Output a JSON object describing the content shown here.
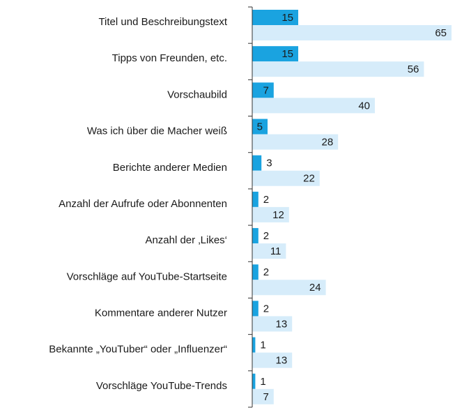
{
  "chart_data": {
    "type": "bar",
    "orientation": "horizontal",
    "categories": [
      "Titel und Beschreibungstext",
      "Tipps von Freunden, etc.",
      "Vorschaubild",
      "Was ich über die Macher weiß",
      "Berichte anderer Medien",
      "Anzahl der Aufrufe oder Abonnenten",
      "Anzahl der ‚Likes‘",
      "Vorschläge auf YouTube-Startseite",
      "Kommentare anderer Nutzer",
      "Bekannte „YouTuber“ oder „Influenzer“",
      "Vorschläge YouTube-Trends"
    ],
    "series": [
      {
        "color": "#1aa3e0",
        "values": [
          15,
          15,
          7,
          5,
          3,
          2,
          2,
          2,
          2,
          1,
          1
        ]
      },
      {
        "color": "#d6ecfa",
        "values": [
          65,
          56,
          40,
          28,
          22,
          12,
          11,
          24,
          13,
          13,
          7
        ]
      }
    ]
  }
}
